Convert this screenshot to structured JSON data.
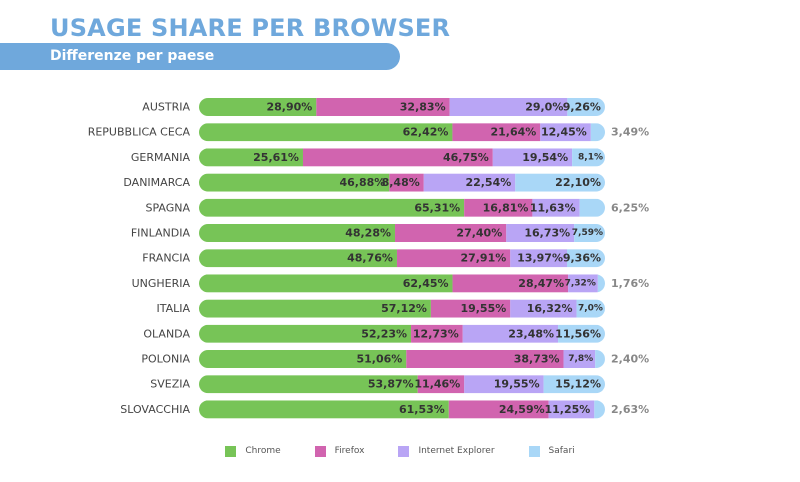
{
  "header": {
    "title": "USAGE SHARE PER BROWSER",
    "subtitle": "Differenze per paese"
  },
  "colors": {
    "title": "#6fa8dc",
    "band": "#6fa8dc",
    "chrome": "#77c457",
    "firefox": "#d164af",
    "ie": "#b9a5f5",
    "safari": "#a9d7f7",
    "inner_label": "#333333",
    "outer_label": "#888888"
  },
  "chart_data": {
    "type": "bar",
    "orientation": "horizontal",
    "stacked": true,
    "categories": [
      "AUSTRIA",
      "REPUBBLICA CECA",
      "GERMANIA",
      "DANIMARCA",
      "SPAGNA",
      "FINLANDIA",
      "FRANCIA",
      "UNGHERIA",
      "ITALIA",
      "OLANDA",
      "POLONIA",
      "SVEZIA",
      "SLOVACCHIA"
    ],
    "xlim": [
      0,
      100
    ],
    "grid": false,
    "legend_position": "bottom",
    "series": [
      {
        "name": "Chrome",
        "values": [
          28.9,
          62.42,
          25.61,
          46.88,
          65.31,
          48.28,
          48.76,
          62.45,
          57.12,
          52.23,
          51.06,
          53.87,
          61.53
        ],
        "labels": [
          "28,90%",
          "62,42%",
          "25,61%",
          "46,88%",
          "65,31%",
          "48,28%",
          "48,76%",
          "62,45%",
          "57,12%",
          "52,23%",
          "51,06%",
          "53,87%",
          "61,53%"
        ]
      },
      {
        "name": "Firefox",
        "values": [
          32.83,
          21.64,
          46.75,
          8.48,
          16.81,
          27.4,
          27.91,
          28.47,
          19.55,
          12.73,
          38.73,
          11.46,
          24.59
        ],
        "labels": [
          "32,83%",
          "21,64%",
          "46,75%",
          "8,48%",
          "16,81%",
          "27,40%",
          "27,91%",
          "28,47%",
          "19,55%",
          "12,73%",
          "38,73%",
          "11,46%",
          "24,59%"
        ]
      },
      {
        "name": "Internet Explorer",
        "values": [
          29.0,
          12.45,
          19.54,
          22.54,
          11.63,
          16.73,
          13.97,
          7.32,
          16.32,
          23.48,
          7.8,
          19.55,
          11.25
        ],
        "labels": [
          "29,0%",
          "12,45%",
          "19,54%",
          "22,54%",
          "11,63%",
          "16,73%",
          "13,97%",
          "7,32%",
          "16,32%",
          "23,48%",
          "7,8%",
          "19,55%",
          "11,25%"
        ]
      },
      {
        "name": "Safari",
        "values": [
          9.26,
          3.49,
          8.1,
          22.1,
          6.25,
          7.59,
          9.36,
          1.76,
          7.0,
          11.56,
          2.4,
          15.12,
          2.63
        ],
        "labels": [
          "9,26%",
          "3,49%",
          "8,1%",
          "22,10%",
          "6,25%",
          "7,59%",
          "9,36%",
          "1,76%",
          "7,0%",
          "11,56%",
          "2,40%",
          "15,12%",
          "2,63%"
        ],
        "label_outside": [
          false,
          true,
          false,
          false,
          true,
          false,
          false,
          true,
          false,
          false,
          true,
          false,
          true
        ]
      }
    ]
  }
}
